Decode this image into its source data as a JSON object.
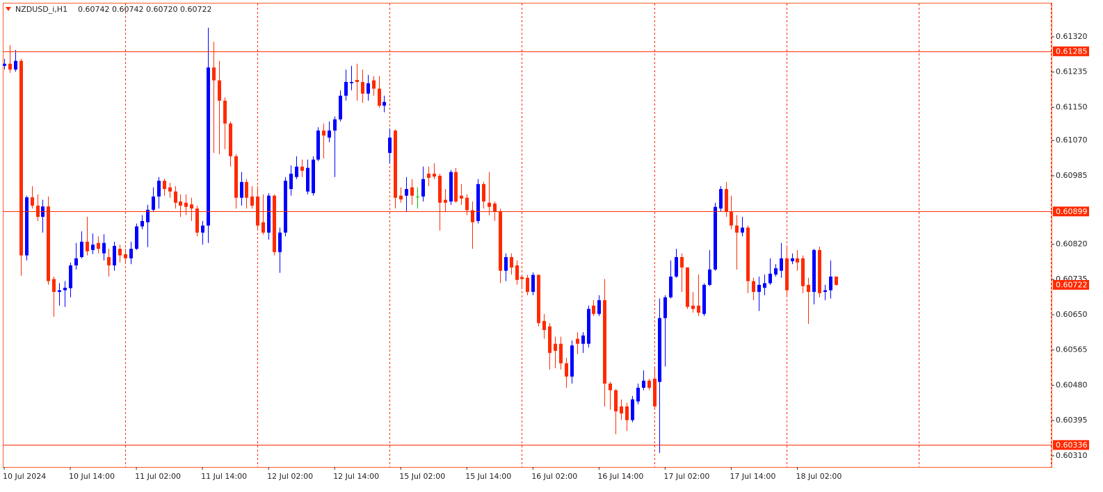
{
  "chart_data": {
    "type": "candlestick",
    "title": "NZDUSD_i,H1",
    "title_ohlc": "0.60742 0.60742 0.60720 0.60722",
    "categories": [
      "10 Jul 2024",
      null,
      null,
      null,
      null,
      null,
      null,
      null,
      null,
      null,
      null,
      null,
      "10 Jul 14:00",
      null,
      null,
      null,
      null,
      null,
      null,
      null,
      null,
      null,
      null,
      null,
      "11 Jul 02:00",
      null,
      null,
      null,
      null,
      null,
      null,
      null,
      null,
      null,
      null,
      null,
      "11 Jul 14:00",
      null,
      null,
      null,
      null,
      null,
      null,
      null,
      null,
      null,
      null,
      null,
      "12 Jul 02:00",
      null,
      null,
      null,
      null,
      null,
      null,
      null,
      null,
      null,
      null,
      null,
      "12 Jul 14:00",
      null,
      null,
      null,
      null,
      null,
      null,
      null,
      null,
      null,
      null,
      null,
      "15 Jul 02:00",
      null,
      null,
      null,
      null,
      null,
      null,
      null,
      null,
      null,
      null,
      null,
      "15 Jul 14:00",
      null,
      null,
      null,
      null,
      null,
      null,
      null,
      null,
      null,
      null,
      null,
      "16 Jul 02:00",
      null,
      null,
      null,
      null,
      null,
      null,
      null,
      null,
      null,
      null,
      null,
      "16 Jul 14:00",
      null,
      null,
      null,
      null,
      null,
      null,
      null,
      null,
      null,
      null,
      null,
      "17 Jul 02:00",
      null,
      null,
      null,
      null,
      null,
      null,
      null,
      null,
      null,
      null,
      null,
      "17 Jul 14:00",
      null,
      null,
      null,
      null,
      null,
      null,
      null,
      null,
      null,
      null,
      null,
      "18 Jul 02:00",
      null,
      null,
      null,
      null,
      null,
      null,
      null
    ],
    "open": [
      0.6125,
      0.61255,
      0.61241,
      0.61262,
      0.60793,
      0.60933,
      0.60913,
      0.60886,
      0.60911,
      0.60736,
      0.60705,
      0.60709,
      0.60714,
      0.60769,
      0.60789,
      0.60826,
      0.60806,
      0.60823,
      0.60798,
      0.60789,
      0.60769,
      0.60809,
      0.60796,
      0.60786,
      0.60809,
      0.60863,
      0.60873,
      0.60903,
      0.60935,
      0.60973,
      0.60957,
      0.60947,
      0.60923,
      0.6092,
      0.60916,
      0.60906,
      0.60848,
      0.60865,
      0.61246,
      0.61215,
      0.61166,
      0.61111,
      0.61032,
      0.60932,
      0.6097,
      0.60935,
      0.60935,
      0.60873,
      0.60848,
      0.60937,
      0.60801,
      0.60848,
      0.60953,
      0.60982,
      0.61007,
      0.60947,
      0.60943,
      0.61024,
      0.61094,
      0.61077,
      0.61094,
      0.61121,
      0.61178,
      0.61208,
      0.61216,
      0.61211,
      0.61183,
      0.61215,
      0.61195,
      0.61154,
      0.6104,
      0.61094,
      0.60937,
      0.60937,
      0.60957,
      0.60935,
      0.60935,
      0.6099,
      0.6099,
      0.60985,
      0.60927,
      0.60923,
      0.60994,
      0.60937,
      0.60932,
      0.60902,
      0.60876,
      0.60965,
      0.6092,
      0.60918,
      0.60898,
      0.60756,
      0.60789,
      0.60769,
      0.60741,
      0.60739,
      0.60705,
      0.60746,
      0.60635,
      0.60622,
      0.6058,
      0.6058,
      0.60533,
      0.60501,
      0.60592,
      0.6058,
      0.6058,
      0.60672,
      0.60652,
      0.60685,
      0.60484,
      0.60468,
      0.60429,
      0.60429,
      0.60396,
      0.60441,
      0.60474,
      0.60491,
      0.60496,
      0.60488,
      0.60642,
      0.60692,
      0.60742,
      0.60789,
      0.60764,
      0.60672,
      0.60672,
      0.60652,
      0.60722,
      0.60759,
      0.60906,
      0.60953,
      0.60898,
      0.60865,
      0.60848,
      0.6086,
      0.60731,
      0.60705,
      0.60715,
      0.60726,
      0.60747,
      0.60756,
      0.60786,
      0.60779,
      0.60786,
      0.60786,
      0.60722,
      0.60705,
      0.60806,
      0.60705,
      0.60709,
      0.60742
    ],
    "high": [
      0.61267,
      0.613,
      0.61288,
      0.61267,
      0.60937,
      0.6096,
      0.6094,
      0.60927,
      0.60935,
      0.60742,
      0.60726,
      0.60731,
      0.60776,
      0.60823,
      0.60851,
      0.60886,
      0.60846,
      0.60839,
      0.60844,
      0.60809,
      0.60826,
      0.60819,
      0.60809,
      0.60826,
      0.6087,
      0.6089,
      0.60915,
      0.60957,
      0.60982,
      0.60978,
      0.60968,
      0.6096,
      0.6094,
      0.6094,
      0.60932,
      0.60913,
      0.60876,
      0.61342,
      0.61308,
      0.61262,
      0.61174,
      0.61116,
      0.61037,
      0.60994,
      0.60977,
      0.6096,
      0.6096,
      0.6094,
      0.60943,
      0.6094,
      0.6086,
      0.60982,
      0.6101,
      0.61032,
      0.61024,
      0.61024,
      0.61032,
      0.61102,
      0.61111,
      0.61116,
      0.61128,
      0.61191,
      0.61241,
      0.6125,
      0.61255,
      0.61241,
      0.61228,
      0.61225,
      0.61225,
      0.61178,
      0.61099,
      0.61097,
      0.60957,
      0.60982,
      0.60977,
      0.60957,
      0.61007,
      0.61007,
      0.61015,
      0.6099,
      0.60953,
      0.60999,
      0.61004,
      0.60965,
      0.6094,
      0.60923,
      0.60977,
      0.6097,
      0.60994,
      0.60923,
      0.60906,
      0.60798,
      0.60798,
      0.60781,
      0.60747,
      0.60746,
      0.60752,
      0.60747,
      0.60652,
      0.6063,
      0.60597,
      0.60597,
      0.60546,
      0.60588,
      0.60608,
      0.60608,
      0.60672,
      0.60685,
      0.60697,
      0.60736,
      0.60488,
      0.60471,
      0.60446,
      0.60438,
      0.60454,
      0.60484,
      0.60516,
      0.60496,
      0.60521,
      0.60689,
      0.60697,
      0.60781,
      0.60809,
      0.60798,
      0.60764,
      0.60705,
      0.60747,
      0.60726,
      0.60806,
      0.6092,
      0.6096,
      0.6097,
      0.60937,
      0.6089,
      0.60886,
      0.60865,
      0.60739,
      0.60742,
      0.60747,
      0.60786,
      0.60772,
      0.60823,
      0.60814,
      0.60798,
      0.60806,
      0.60793,
      0.60739,
      0.60809,
      0.60814,
      0.60722,
      0.60781,
      0.60742
    ],
    "low": [
      0.61241,
      0.61233,
      0.61236,
      0.60744,
      0.60781,
      0.60906,
      0.60876,
      0.60848,
      0.60722,
      0.60645,
      0.60672,
      0.60669,
      0.60692,
      0.60759,
      0.60786,
      0.60793,
      0.60796,
      0.60798,
      0.60781,
      0.60742,
      0.60756,
      0.60776,
      0.60776,
      0.60772,
      0.60806,
      0.60856,
      0.60813,
      0.60898,
      0.60906,
      0.60937,
      0.60932,
      0.60906,
      0.60886,
      0.6089,
      0.60876,
      0.60839,
      0.60819,
      0.60823,
      0.6104,
      0.61037,
      0.61049,
      0.61007,
      0.60906,
      0.60913,
      0.60906,
      0.60906,
      0.60856,
      0.60843,
      0.60831,
      0.60793,
      0.60751,
      0.60839,
      0.60937,
      0.60977,
      0.60982,
      0.6094,
      0.60937,
      0.6102,
      0.61027,
      0.61066,
      0.60982,
      0.61116,
      0.61166,
      0.61191,
      0.61166,
      0.61161,
      0.61166,
      0.61178,
      0.61149,
      0.61138,
      0.61015,
      0.60906,
      0.6092,
      0.60898,
      0.60915,
      0.60906,
      0.60923,
      0.6096,
      0.60977,
      0.60853,
      0.60898,
      0.60915,
      0.6092,
      0.60915,
      0.6089,
      0.60809,
      0.6087,
      0.60906,
      0.6089,
      0.60876,
      0.60726,
      0.60731,
      0.60747,
      0.60722,
      0.60714,
      0.60697,
      0.60697,
      0.60622,
      0.60592,
      0.60518,
      0.60521,
      0.60518,
      0.60474,
      0.60484,
      0.60555,
      0.60558,
      0.60571,
      0.60647,
      0.60647,
      0.60429,
      0.60421,
      0.60362,
      0.60396,
      0.6037,
      0.60391,
      0.60434,
      0.60468,
      0.60468,
      0.60421,
      0.60317,
      0.60525,
      0.60689,
      0.60739,
      0.60705,
      0.60664,
      0.60655,
      0.60647,
      0.60647,
      0.60719,
      0.60756,
      0.60898,
      0.60886,
      0.60856,
      0.60759,
      0.60839,
      0.60702,
      0.60685,
      0.60659,
      0.60697,
      0.60722,
      0.60742,
      0.60739,
      0.60692,
      0.60772,
      0.60756,
      0.60702,
      0.60628,
      0.60675,
      0.60692,
      0.60685,
      0.60689,
      0.6072
    ],
    "close": [
      0.61255,
      0.61241,
      0.61262,
      0.60793,
      0.60933,
      0.60913,
      0.60886,
      0.60911,
      0.60731,
      0.60705,
      0.60709,
      0.60715,
      0.60769,
      0.60786,
      0.60826,
      0.60803,
      0.60819,
      0.60809,
      0.60823,
      0.60769,
      0.60816,
      0.60793,
      0.60786,
      0.60809,
      0.60863,
      0.60876,
      0.60903,
      0.60935,
      0.60973,
      0.60953,
      0.60947,
      0.6092,
      0.60913,
      0.6091,
      0.60906,
      0.60848,
      0.60865,
      0.61246,
      0.61215,
      0.61166,
      0.61111,
      0.61032,
      0.60932,
      0.6097,
      0.60932,
      0.60913,
      0.60865,
      0.60848,
      0.60937,
      0.60801,
      0.60848,
      0.60973,
      0.6099,
      0.61007,
      0.60997,
      0.61004,
      0.61024,
      0.61094,
      0.61082,
      0.61094,
      0.61121,
      0.61178,
      0.61211,
      0.61211,
      0.61211,
      0.61183,
      0.61208,
      0.61195,
      0.61154,
      0.61163,
      0.61077,
      0.60932,
      0.60928,
      0.60953,
      0.60937,
      0.60935,
      0.60977,
      0.6098,
      0.60983,
      0.6092,
      0.6092,
      0.60994,
      0.60923,
      0.6093,
      0.60902,
      0.60873,
      0.60965,
      0.60923,
      0.6091,
      0.60898,
      0.60756,
      0.60789,
      0.60764,
      0.60734,
      0.60736,
      0.60705,
      0.60746,
      0.6063,
      0.60613,
      0.60558,
      0.60563,
      0.60533,
      0.60501,
      0.60576,
      0.6058,
      0.606,
      0.60664,
      0.60652,
      0.60685,
      0.60484,
      0.60468,
      0.60417,
      0.60412,
      0.60396,
      0.60446,
      0.60474,
      0.60491,
      0.60474,
      0.60429,
      0.60642,
      0.60692,
      0.60742,
      0.60789,
      0.60764,
      0.60669,
      0.60664,
      0.60655,
      0.60722,
      0.60759,
      0.6091,
      0.60953,
      0.60898,
      0.60865,
      0.60848,
      0.6086,
      0.60731,
      0.60705,
      0.60722,
      0.60726,
      0.60749,
      0.60762,
      0.60786,
      0.60709,
      0.60786,
      0.60776,
      0.60719,
      0.60705,
      0.60806,
      0.60702,
      0.60709,
      0.60742,
      0.60722
    ],
    "up_color": "#0000ff",
    "down_color": "#ff2a00",
    "doji_color": "#00c000",
    "line_color": "#ff2a00",
    "ylim": [
      0.60283,
      0.61402
    ],
    "yticks": [
      {
        "value": 0.6132,
        "label": "0.61320"
      },
      0.61235,
      {
        "value": 0.6115,
        "label": "0.61150"
      },
      {
        "value": 0.6107,
        "label": "0.61070"
      },
      0.60985,
      {
        "value": 0.6082,
        "label": "0.60820"
      },
      0.60735,
      {
        "value": 0.6065,
        "label": "0.60650"
      },
      0.60565,
      {
        "value": 0.6048,
        "label": "0.60480"
      },
      0.60395,
      {
        "value": 0.6031,
        "label": "0.60310"
      }
    ],
    "hlines": [
      0.61285,
      0.60899,
      0.60336
    ],
    "bid": 0.60722,
    "grid": false,
    "period_separators": true
  }
}
